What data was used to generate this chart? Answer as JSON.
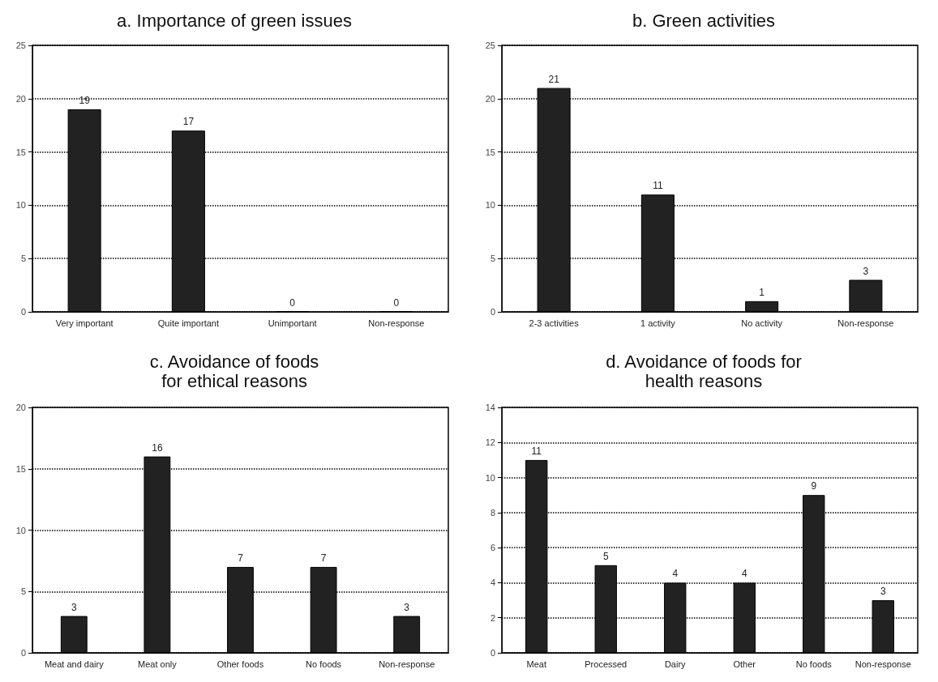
{
  "chart_data": [
    {
      "type": "bar",
      "title": "a. Importance of green issues",
      "categories": [
        "Very important",
        "Quite important",
        "Unimportant",
        "Non-response"
      ],
      "values": [
        19,
        17,
        0,
        0
      ],
      "color": "#222222",
      "ylim": [
        0,
        25
      ],
      "yticks": [
        0,
        5,
        10,
        15,
        20,
        25
      ],
      "grid": "y",
      "data_labels": true
    },
    {
      "type": "bar",
      "title": "b. Green activities",
      "categories": [
        "2-3 activities",
        "1 activity",
        "No activity",
        "Non-response"
      ],
      "values": [
        21,
        11,
        1,
        3
      ],
      "color": "#222222",
      "ylim": [
        0,
        25
      ],
      "yticks": [
        0,
        5,
        10,
        15,
        20,
        25
      ],
      "grid": "y",
      "data_labels": true
    },
    {
      "type": "bar",
      "title": "c. Avoidance of foods\nfor ethical reasons",
      "categories": [
        "Meat and dairy",
        "Meat only",
        "Other foods",
        "No foods",
        "Non-response"
      ],
      "values": [
        3,
        16,
        7,
        7,
        3
      ],
      "color": "#222222",
      "ylim": [
        0,
        20
      ],
      "yticks": [
        0,
        5,
        10,
        15,
        20
      ],
      "grid": "y",
      "data_labels": true
    },
    {
      "type": "bar",
      "title": "d. Avoidance of foods for\nhealth reasons",
      "categories": [
        "Meat",
        "Processed",
        "Dairy",
        "Other",
        "No foods",
        "Non-response"
      ],
      "values": [
        11,
        5,
        4,
        4,
        9,
        3
      ],
      "color": "#222222",
      "ylim": [
        0,
        14
      ],
      "yticks": [
        0,
        2,
        4,
        6,
        8,
        10,
        12,
        14
      ],
      "grid": "y",
      "data_labels": true
    }
  ]
}
